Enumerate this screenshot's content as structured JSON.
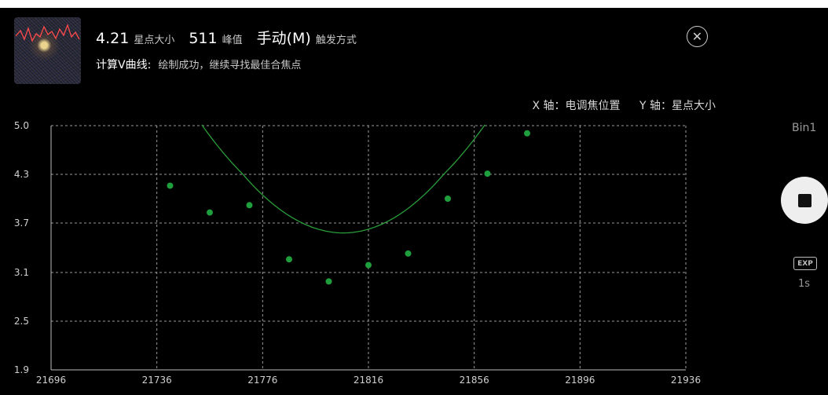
{
  "header": {
    "star_size_value": "4.21",
    "star_size_label": "星点大小",
    "peak_value": "511",
    "peak_label": "峰值",
    "trigger_mode_value": "手动(M)",
    "trigger_mode_label": "触发方式",
    "vcurve_label": "计算V曲线:",
    "vcurve_status": "绘制成功，继续寻找最佳合焦点"
  },
  "axis_caption": {
    "x": "X 轴：电调焦位置",
    "y": "Y 轴：星点大小"
  },
  "side_panel": {
    "bin_label": "Bin1",
    "exp_icon_text": "EXP",
    "exposure_value": "1s"
  },
  "icons": [
    "close-icon",
    "stop-icon",
    "exp-icon"
  ],
  "colors": {
    "curve": "#2a9d3a",
    "points": "#1e9e3c",
    "grid": "#9a9a9a"
  },
  "chart_data": {
    "type": "scatter",
    "x_ticks": [
      21696,
      21736,
      21776,
      21816,
      21856,
      21896,
      21936
    ],
    "y_ticks": [
      1.9,
      2.5,
      3.1,
      3.7,
      4.3,
      5.0
    ],
    "xlim": [
      21696,
      21936
    ],
    "ylim": [
      1.9,
      5.0
    ],
    "grid": true,
    "points": [
      {
        "x": 21741,
        "y": 4.16
      },
      {
        "x": 21756,
        "y": 3.83
      },
      {
        "x": 21771,
        "y": 3.92
      },
      {
        "x": 21786,
        "y": 3.26
      },
      {
        "x": 21801,
        "y": 2.99
      },
      {
        "x": 21816,
        "y": 3.19
      },
      {
        "x": 21831,
        "y": 3.33
      },
      {
        "x": 21846,
        "y": 4.0
      },
      {
        "x": 21861,
        "y": 4.31
      },
      {
        "x": 21876,
        "y": 4.89
      }
    ],
    "fit_curve": {
      "a": 0.0005,
      "vertex_x": 21806.5,
      "vertex_y": 3.58,
      "x_range": [
        21725,
        21876
      ]
    }
  }
}
